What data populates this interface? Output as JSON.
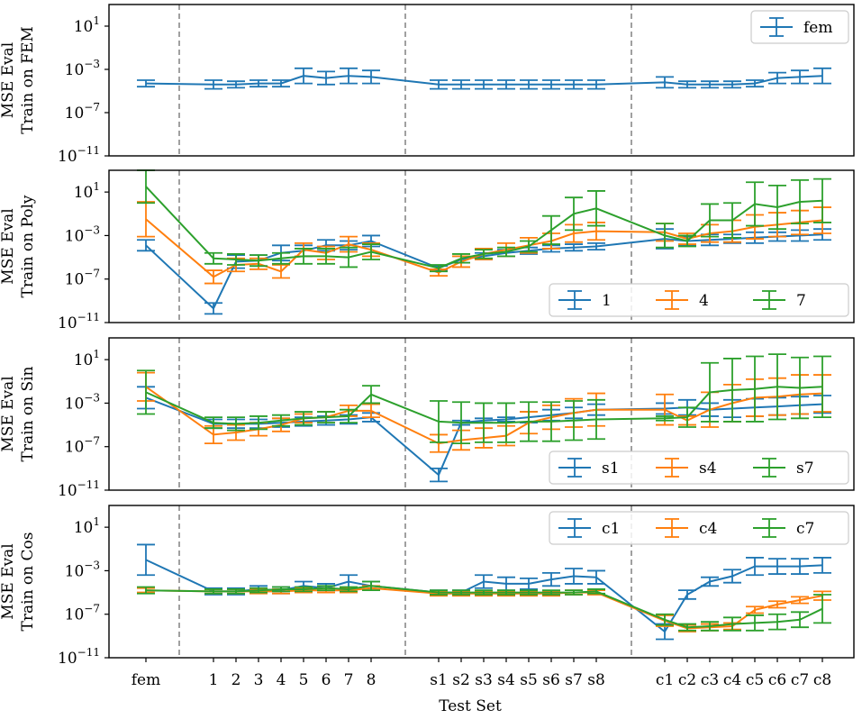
{
  "chart_data": {
    "type": "line",
    "error_bars": true,
    "xlabel": "Test Set",
    "x_categories": [
      "fem",
      "1",
      "2",
      "3",
      "4",
      "5",
      "6",
      "7",
      "8",
      "s1",
      "s2",
      "s3",
      "s4",
      "s5",
      "s6",
      "s7",
      "s8",
      "c1",
      "c2",
      "c3",
      "c4",
      "c5",
      "c6",
      "c7",
      "c8"
    ],
    "y_scale": "log",
    "ylim_exponent": [
      -11,
      3
    ],
    "y_ticks": [
      {
        "base": "10",
        "exp": "1"
      },
      {
        "base": "10",
        "exp": "−3"
      },
      {
        "base": "10",
        "exp": "−7"
      },
      {
        "base": "10",
        "exp": "−11"
      }
    ],
    "colors": {
      "blue": "#1f77b4",
      "orange": "#ff7f0e",
      "green": "#2ca02c"
    },
    "panels": [
      {
        "ylabel_line1": "MSE Eval",
        "ylabel_line2": "Train on FEM",
        "legend_placement": "top-right",
        "series": [
          {
            "name": "fem",
            "color": "#1f77b4",
            "log10_values": [
              -4.3,
              -4.4,
              -4.4,
              -4.3,
              -4.3,
              -3.6,
              -3.8,
              -3.6,
              -3.7,
              -4.4,
              -4.4,
              -4.4,
              -4.4,
              -4.4,
              -4.4,
              -4.4,
              -4.4,
              -4.2,
              -4.4,
              -4.4,
              -4.4,
              -4.3,
              -3.8,
              -3.7,
              -3.6
            ],
            "log10_err": [
              0.3,
              0.4,
              0.3,
              0.3,
              0.3,
              0.7,
              0.6,
              0.7,
              0.6,
              0.4,
              0.4,
              0.4,
              0.4,
              0.4,
              0.4,
              0.4,
              0.4,
              0.5,
              0.3,
              0.3,
              0.3,
              0.3,
              0.5,
              0.6,
              0.7
            ]
          }
        ]
      },
      {
        "ylabel_line1": "MSE Eval",
        "ylabel_line2": "Train on Poly",
        "legend_placement": "bottom-right",
        "series": [
          {
            "name": "1",
            "color": "#1f77b4",
            "log10_values": [
              -3.9,
              -9.7,
              -5.4,
              -5.3,
              -4.6,
              -4.4,
              -3.9,
              -3.9,
              -3.5,
              -6.0,
              -5.2,
              -4.9,
              -4.6,
              -4.4,
              -4.2,
              -4.1,
              -4.0,
              -3.3,
              -3.5,
              -3.4,
              -3.3,
              -3.2,
              -3.1,
              -3.0,
              -2.9
            ],
            "log10_err": [
              0.5,
              0.5,
              0.6,
              0.5,
              0.7,
              0.5,
              0.5,
              0.4,
              0.5,
              0.2,
              0.3,
              0.3,
              0.3,
              0.3,
              0.3,
              0.3,
              0.3,
              0.9,
              0.4,
              0.5,
              0.4,
              0.5,
              0.4,
              0.5,
              0.5
            ]
          },
          {
            "name": "4",
            "color": "#ff7f0e",
            "log10_values": [
              -1.5,
              -6.8,
              -5.7,
              -5.6,
              -6.3,
              -4.3,
              -4.6,
              -3.8,
              -4.3,
              -6.4,
              -5.4,
              -4.7,
              -4.3,
              -3.9,
              -3.5,
              -2.8,
              -2.6,
              -2.7,
              -3.3,
              -2.8,
              -2.6,
              -2.2,
              -2.0,
              -1.8,
              -1.6
            ],
            "log10_err": [
              1.6,
              0.6,
              0.6,
              0.5,
              0.6,
              0.6,
              0.6,
              0.7,
              0.6,
              0.3,
              0.5,
              0.5,
              0.6,
              0.7,
              0.7,
              0.8,
              0.8,
              0.8,
              0.5,
              0.8,
              1.0,
              1.1,
              1.1,
              1.1,
              1.2
            ]
          },
          {
            "name": "7",
            "color": "#2ca02c",
            "log10_values": [
              1.5,
              -5.1,
              -5.2,
              -5.3,
              -5.1,
              -4.9,
              -4.9,
              -5.0,
              -4.5,
              -6.0,
              -5.1,
              -4.7,
              -4.5,
              -4.0,
              -2.5,
              -1.0,
              -0.5,
              -3.0,
              -3.5,
              -1.6,
              -1.6,
              -0.1,
              -0.4,
              0.1,
              0.2
            ],
            "log10_err": [
              1.5,
              0.5,
              0.5,
              0.5,
              0.5,
              0.7,
              0.7,
              0.9,
              0.7,
              0.3,
              0.4,
              0.4,
              0.4,
              0.5,
              1.3,
              1.5,
              1.6,
              1.1,
              0.5,
              1.5,
              1.6,
              2.0,
              2.0,
              2.0,
              2.0
            ]
          }
        ]
      },
      {
        "ylabel_line1": "MSE Eval",
        "ylabel_line2": "Train on Sin",
        "legend_placement": "bottom-right",
        "series": [
          {
            "name": "s1",
            "color": "#1f77b4",
            "log10_values": [
              -2.5,
              -4.9,
              -4.9,
              -4.9,
              -4.8,
              -4.7,
              -4.6,
              -4.5,
              -4.3,
              -9.6,
              -4.8,
              -4.6,
              -4.5,
              -4.3,
              -4.1,
              -3.9,
              -3.6,
              -3.5,
              -3.4,
              -3.6,
              -3.5,
              -3.4,
              -3.3,
              -3.2,
              -3.1
            ],
            "log10_err": [
              1.0,
              0.4,
              0.4,
              0.4,
              0.4,
              0.4,
              0.4,
              0.4,
              0.4,
              0.6,
              0.2,
              0.2,
              0.2,
              0.5,
              0.5,
              0.5,
              0.5,
              0.5,
              0.7,
              0.6,
              0.8,
              0.8,
              0.8,
              0.8,
              0.8
            ]
          },
          {
            "name": "s4",
            "color": "#ff7f0e",
            "log10_values": [
              -1.5,
              -5.9,
              -5.7,
              -5.4,
              -5.0,
              -4.4,
              -4.3,
              -3.7,
              -3.7,
              -6.7,
              -6.4,
              -6.2,
              -6.0,
              -4.8,
              -4.3,
              -3.9,
              -3.6,
              -3.6,
              -4.6,
              -3.6,
              -3.0,
              -2.5,
              -2.4,
              -2.2,
              -2.1
            ],
            "log10_err": [
              1.3,
              0.8,
              0.7,
              0.6,
              0.6,
              0.4,
              0.5,
              0.5,
              0.6,
              0.8,
              0.9,
              0.9,
              0.9,
              1.0,
              1.1,
              1.3,
              1.5,
              1.4,
              0.4,
              1.6,
              1.7,
              1.7,
              1.7,
              1.8,
              1.7
            ]
          },
          {
            "name": "s7",
            "color": "#2ca02c",
            "log10_values": [
              -2.0,
              -4.8,
              -4.9,
              -4.8,
              -4.6,
              -4.4,
              -4.3,
              -4.2,
              -2.2,
              -4.7,
              -4.8,
              -4.8,
              -4.8,
              -4.7,
              -4.7,
              -4.6,
              -4.5,
              -4.4,
              -4.3,
              -2.0,
              -1.8,
              -1.7,
              -1.5,
              -1.6,
              -1.5
            ],
            "log10_err": [
              2.0,
              0.5,
              0.6,
              0.6,
              0.5,
              0.6,
              0.5,
              0.6,
              0.8,
              1.9,
              1.9,
              1.8,
              1.8,
              1.8,
              1.8,
              1.8,
              1.8,
              0.2,
              0.9,
              2.7,
              2.9,
              3.0,
              3.0,
              2.8,
              2.8
            ]
          }
        ]
      },
      {
        "ylabel_line1": "MSE Eval",
        "ylabel_line2": "Train on Cos",
        "legend_placement": "top-right",
        "series": [
          {
            "name": "c1",
            "color": "#1f77b4",
            "log10_values": [
              -2.0,
              -4.9,
              -4.9,
              -4.7,
              -4.8,
              -4.4,
              -4.6,
              -4.0,
              -4.4,
              -5.0,
              -5.0,
              -4.0,
              -4.2,
              -4.2,
              -3.8,
              -3.5,
              -3.6,
              -8.6,
              -5.2,
              -4.0,
              -3.5,
              -2.6,
              -2.6,
              -2.6,
              -2.5
            ],
            "log10_err": [
              1.4,
              0.3,
              0.3,
              0.3,
              0.3,
              0.4,
              0.4,
              0.6,
              0.4,
              0.2,
              0.2,
              0.6,
              0.6,
              0.5,
              0.6,
              0.7,
              0.6,
              0.7,
              0.4,
              0.4,
              0.6,
              0.8,
              0.7,
              0.7,
              0.7
            ]
          },
          {
            "name": "c4",
            "color": "#ff7f0e",
            "log10_values": [
              -4.8,
              -4.9,
              -4.9,
              -4.9,
              -4.9,
              -4.8,
              -4.8,
              -4.8,
              -4.6,
              -5.1,
              -5.1,
              -5.1,
              -5.1,
              -5.1,
              -5.1,
              -5.0,
              -5.0,
              -7.6,
              -8.3,
              -8.2,
              -8.1,
              -6.6,
              -6.1,
              -5.7,
              -5.3
            ],
            "log10_err": [
              0.2,
              0.2,
              0.2,
              0.2,
              0.2,
              0.2,
              0.2,
              0.2,
              0.2,
              0.2,
              0.2,
              0.2,
              0.2,
              0.2,
              0.2,
              0.2,
              0.2,
              0.5,
              0.3,
              0.3,
              0.3,
              0.3,
              0.3,
              0.3,
              0.4
            ]
          },
          {
            "name": "c7",
            "color": "#2ca02c",
            "log10_values": [
              -4.8,
              -4.9,
              -4.9,
              -4.8,
              -4.7,
              -4.7,
              -4.6,
              -4.7,
              -4.4,
              -5.0,
              -5.0,
              -5.0,
              -5.0,
              -5.0,
              -5.0,
              -5.0,
              -4.9,
              -7.5,
              -8.2,
              -8.1,
              -7.9,
              -7.8,
              -7.7,
              -7.5,
              -6.5
            ],
            "log10_err": [
              0.3,
              0.2,
              0.2,
              0.2,
              0.2,
              0.2,
              0.2,
              0.2,
              0.4,
              0.2,
              0.2,
              0.2,
              0.2,
              0.2,
              0.2,
              0.2,
              0.2,
              0.5,
              0.3,
              0.4,
              0.6,
              0.7,
              0.7,
              0.7,
              1.3
            ]
          }
        ]
      }
    ]
  }
}
